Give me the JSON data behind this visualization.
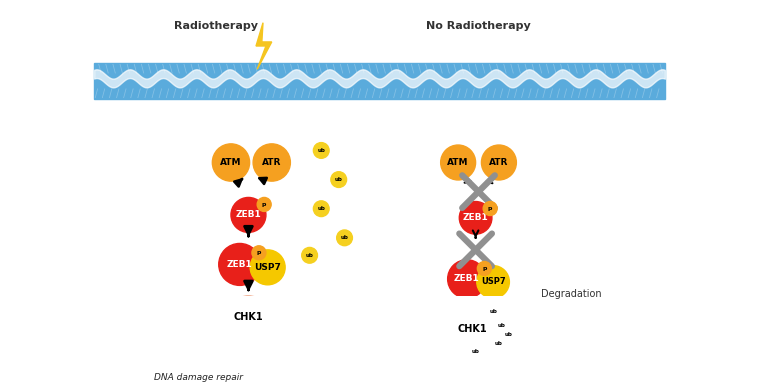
{
  "bg_color": "#ffffff",
  "membrane_color": "#5aabdc",
  "left_label": "Radiotherapy",
  "right_label": "No Radiotherapy",
  "atm_atr_color": "#f5a020",
  "zeb1_color": "#e8201a",
  "p_color": "#f5a020",
  "usp7_color": "#f5c800",
  "chk1_color": "#f0a888",
  "ub_color": "#f5d020",
  "cross_color": "#909090",
  "dna_repair_label": "DNA damage repair",
  "degradation_label": "Degradation"
}
